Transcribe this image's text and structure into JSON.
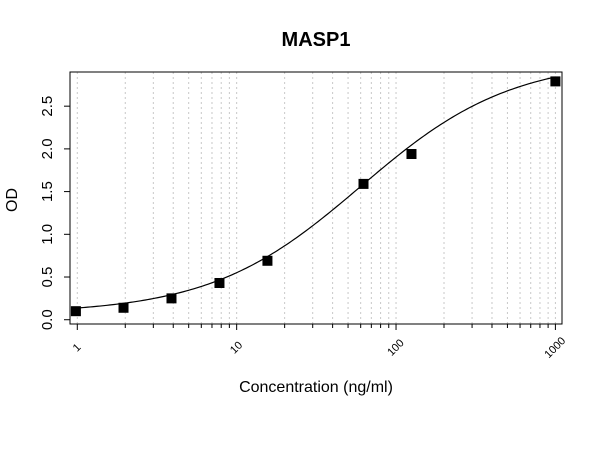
{
  "chart_data": {
    "type": "scatter",
    "title": "MASP1",
    "xlabel": "Concentration (ng/ml)",
    "ylabel": "OD",
    "x_scale": "log",
    "xlim": [
      0.9,
      1100
    ],
    "ylim": [
      -0.05,
      2.9
    ],
    "x_ticks": [
      "1",
      "10",
      "100",
      "1000"
    ],
    "y_ticks": [
      "0.0",
      "0.5",
      "1.0",
      "1.5",
      "2.0",
      "2.5"
    ],
    "grid": "vertical dotted at log minor ticks",
    "series": [
      {
        "points": [
          {
            "x": 0.98,
            "y": 0.1
          },
          {
            "x": 1.95,
            "y": 0.14
          },
          {
            "x": 3.9,
            "y": 0.25
          },
          {
            "x": 7.8,
            "y": 0.43
          },
          {
            "x": 15.6,
            "y": 0.69
          },
          {
            "x": 62.5,
            "y": 1.59
          },
          {
            "x": 125,
            "y": 1.94
          },
          {
            "x": 1000,
            "y": 2.79
          }
        ],
        "fit": "4-parameter logistic",
        "marker": "square",
        "color": "#000000"
      }
    ]
  }
}
